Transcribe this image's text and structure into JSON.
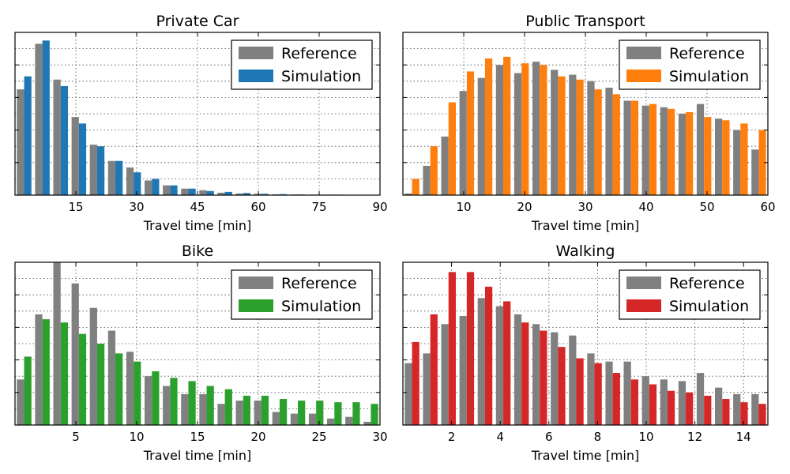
{
  "chart_data": [
    {
      "type": "bar",
      "title": "Private Car",
      "xlabel": "Travel time [min]",
      "ylabel": "",
      "xlim": [
        0,
        90
      ],
      "ylim": [
        0,
        1.0
      ],
      "xticks": [
        15,
        30,
        45,
        60,
        75,
        90
      ],
      "grid": true,
      "legend": "top-right",
      "bin_width": 4.5,
      "x": [
        2.25,
        6.75,
        11.25,
        15.75,
        20.25,
        24.75,
        29.25,
        33.75,
        38.25,
        42.75,
        47.25,
        51.75,
        56.25,
        60.75,
        65.25,
        69.75,
        74.25,
        78.75,
        83.25,
        87.75
      ],
      "series": [
        {
          "name": "Reference",
          "color": "#808080",
          "values": [
            0.65,
            0.93,
            0.71,
            0.48,
            0.31,
            0.21,
            0.17,
            0.09,
            0.06,
            0.04,
            0.03,
            0.015,
            0.01,
            0.008,
            0.005,
            0.004,
            0.003,
            0.003,
            0.002,
            0.002
          ]
        },
        {
          "name": "Simulation",
          "color": "#1f77b4",
          "values": [
            0.73,
            0.95,
            0.67,
            0.44,
            0.3,
            0.21,
            0.14,
            0.1,
            0.06,
            0.04,
            0.025,
            0.02,
            0.013,
            0.008,
            0.006,
            0.004,
            0.003,
            0.003,
            0.002,
            0.002
          ]
        }
      ]
    },
    {
      "type": "bar",
      "title": "Public Transport",
      "xlabel": "Travel time [min]",
      "ylabel": "",
      "xlim": [
        0,
        60
      ],
      "ylim": [
        0,
        1.0
      ],
      "xticks": [
        10,
        20,
        30,
        40,
        50,
        60
      ],
      "grid": true,
      "legend": "top-right",
      "bin_width": 3,
      "x": [
        1.5,
        4.5,
        7.5,
        10.5,
        13.5,
        16.5,
        19.5,
        22.5,
        25.5,
        28.5,
        31.5,
        34.5,
        37.5,
        40.5,
        43.5,
        46.5,
        49.5,
        52.5,
        55.5,
        58.5
      ],
      "series": [
        {
          "name": "Reference",
          "color": "#808080",
          "values": [
            0.01,
            0.18,
            0.36,
            0.64,
            0.72,
            0.8,
            0.75,
            0.82,
            0.77,
            0.74,
            0.7,
            0.66,
            0.58,
            0.55,
            0.54,
            0.5,
            0.56,
            0.47,
            0.4,
            0.28
          ]
        },
        {
          "name": "Simulation",
          "color": "#ff7f0e",
          "values": [
            0.1,
            0.3,
            0.57,
            0.76,
            0.84,
            0.85,
            0.81,
            0.8,
            0.73,
            0.71,
            0.65,
            0.62,
            0.58,
            0.56,
            0.53,
            0.51,
            0.48,
            0.46,
            0.44,
            0.4
          ]
        }
      ]
    },
    {
      "type": "bar",
      "title": "Bike",
      "xlabel": "Travel time [min]",
      "ylabel": "",
      "xlim": [
        0,
        30
      ],
      "ylim": [
        0,
        1.0
      ],
      "xticks": [
        5,
        10,
        15,
        20,
        25,
        30
      ],
      "grid": true,
      "legend": "top-right",
      "bin_width": 1.5,
      "x": [
        0.75,
        2.25,
        3.75,
        5.25,
        6.75,
        8.25,
        9.75,
        11.25,
        12.75,
        14.25,
        15.75,
        17.25,
        18.75,
        20.25,
        21.75,
        23.25,
        24.75,
        26.25,
        27.75,
        29.25
      ],
      "series": [
        {
          "name": "Reference",
          "color": "#808080",
          "values": [
            0.28,
            0.68,
            1.0,
            0.87,
            0.72,
            0.58,
            0.45,
            0.3,
            0.24,
            0.19,
            0.19,
            0.13,
            0.15,
            0.15,
            0.08,
            0.07,
            0.07,
            0.04,
            0.05,
            0.02
          ]
        },
        {
          "name": "Simulation",
          "color": "#2ca02c",
          "values": [
            0.42,
            0.65,
            0.63,
            0.56,
            0.5,
            0.44,
            0.39,
            0.33,
            0.29,
            0.27,
            0.24,
            0.22,
            0.18,
            0.18,
            0.16,
            0.15,
            0.15,
            0.14,
            0.14,
            0.13
          ]
        }
      ]
    },
    {
      "type": "bar",
      "title": "Walking",
      "xlabel": "Travel time [min]",
      "ylabel": "",
      "xlim": [
        0,
        15
      ],
      "ylim": [
        0,
        1.0
      ],
      "xticks": [
        2,
        4,
        6,
        8,
        10,
        12,
        14
      ],
      "grid": true,
      "legend": "top-right",
      "bin_width": 0.75,
      "x": [
        0.375,
        1.125,
        1.875,
        2.625,
        3.375,
        4.125,
        4.875,
        5.625,
        6.375,
        7.125,
        7.875,
        8.625,
        9.375,
        10.125,
        10.875,
        11.625,
        12.375,
        13.125,
        13.875,
        14.625
      ],
      "series": [
        {
          "name": "Reference",
          "color": "#808080",
          "values": [
            0.38,
            0.44,
            0.62,
            0.67,
            0.78,
            0.73,
            0.68,
            0.62,
            0.57,
            0.55,
            0.44,
            0.39,
            0.39,
            0.3,
            0.28,
            0.27,
            0.32,
            0.23,
            0.19,
            0.19
          ]
        },
        {
          "name": "Simulation",
          "color": "#d62728",
          "values": [
            0.51,
            0.68,
            0.94,
            0.94,
            0.85,
            0.76,
            0.63,
            0.58,
            0.48,
            0.41,
            0.38,
            0.32,
            0.28,
            0.25,
            0.21,
            0.2,
            0.18,
            0.16,
            0.14,
            0.13
          ]
        }
      ]
    }
  ]
}
